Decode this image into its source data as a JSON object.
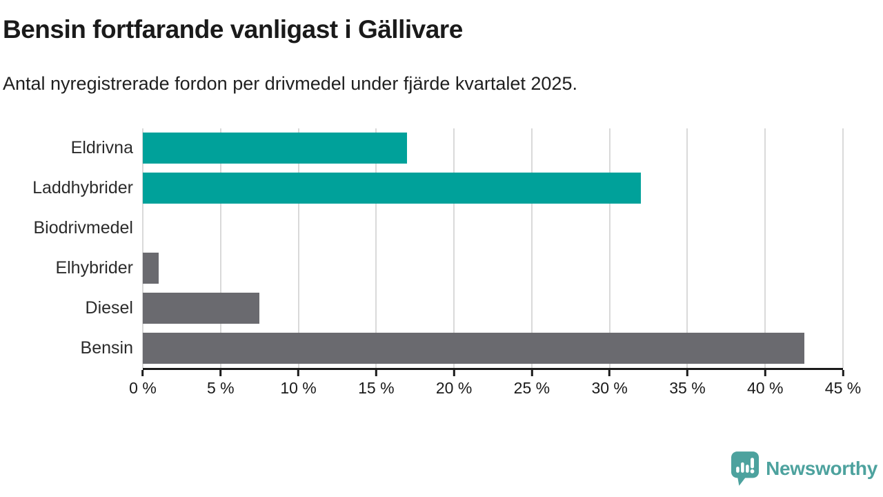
{
  "chart_data": {
    "type": "bar",
    "orientation": "horizontal",
    "title": "Bensin fortfarande vanligast i Gällivare",
    "subtitle": "Antal nyregistrerade fordon per drivmedel under fjärde kvartalet 2025.",
    "categories": [
      "Eldrivna",
      "Laddhybrider",
      "Biodrivmedel",
      "Elhybrider",
      "Diesel",
      "Bensin"
    ],
    "values": [
      17,
      32,
      0,
      1,
      7.5,
      42.5
    ],
    "bar_colors": [
      "#00a19a",
      "#00a19a",
      "#00a19a",
      "#6a6a6f",
      "#6a6a6f",
      "#6a6a6f"
    ],
    "unit": "%",
    "xlim": [
      0,
      45
    ],
    "xticks": [
      0,
      5,
      10,
      15,
      20,
      25,
      30,
      35,
      40,
      45
    ],
    "tick_suffix": " %",
    "grid": "vertical",
    "legend": "none"
  },
  "colors": {
    "teal": "#00a19a",
    "gray": "#6a6a6f",
    "gridline": "#d9d9d9",
    "axis": "#1a1a1a",
    "brand": "#4da29e"
  },
  "footer": {
    "logo_text": "Newsworthy"
  }
}
